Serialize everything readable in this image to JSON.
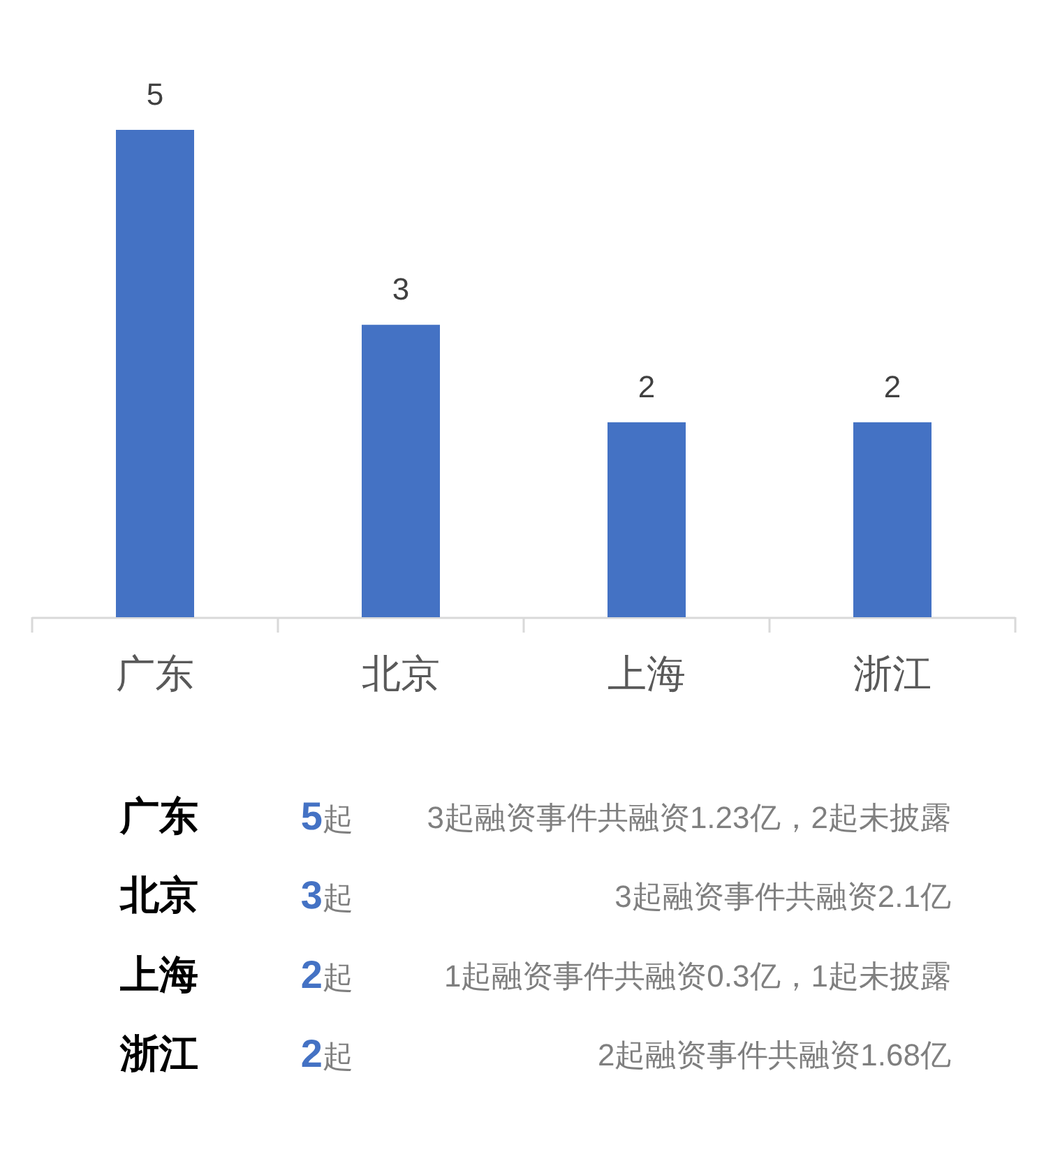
{
  "chart_data": {
    "type": "bar",
    "categories": [
      "广东",
      "北京",
      "上海",
      "浙江"
    ],
    "values": [
      5,
      3,
      2,
      2
    ],
    "color": "#4472c4",
    "data_labels": true,
    "annotations": [
      "5起",
      "3起融资事件共融资1.23亿，2起未披露",
      "3起",
      "3起融资事件共融资2.1亿",
      "2起",
      "1起融资事件共融资0.3亿，1起未披露",
      "2起",
      "2起融资事件共融资1.68亿"
    ]
  }
}
